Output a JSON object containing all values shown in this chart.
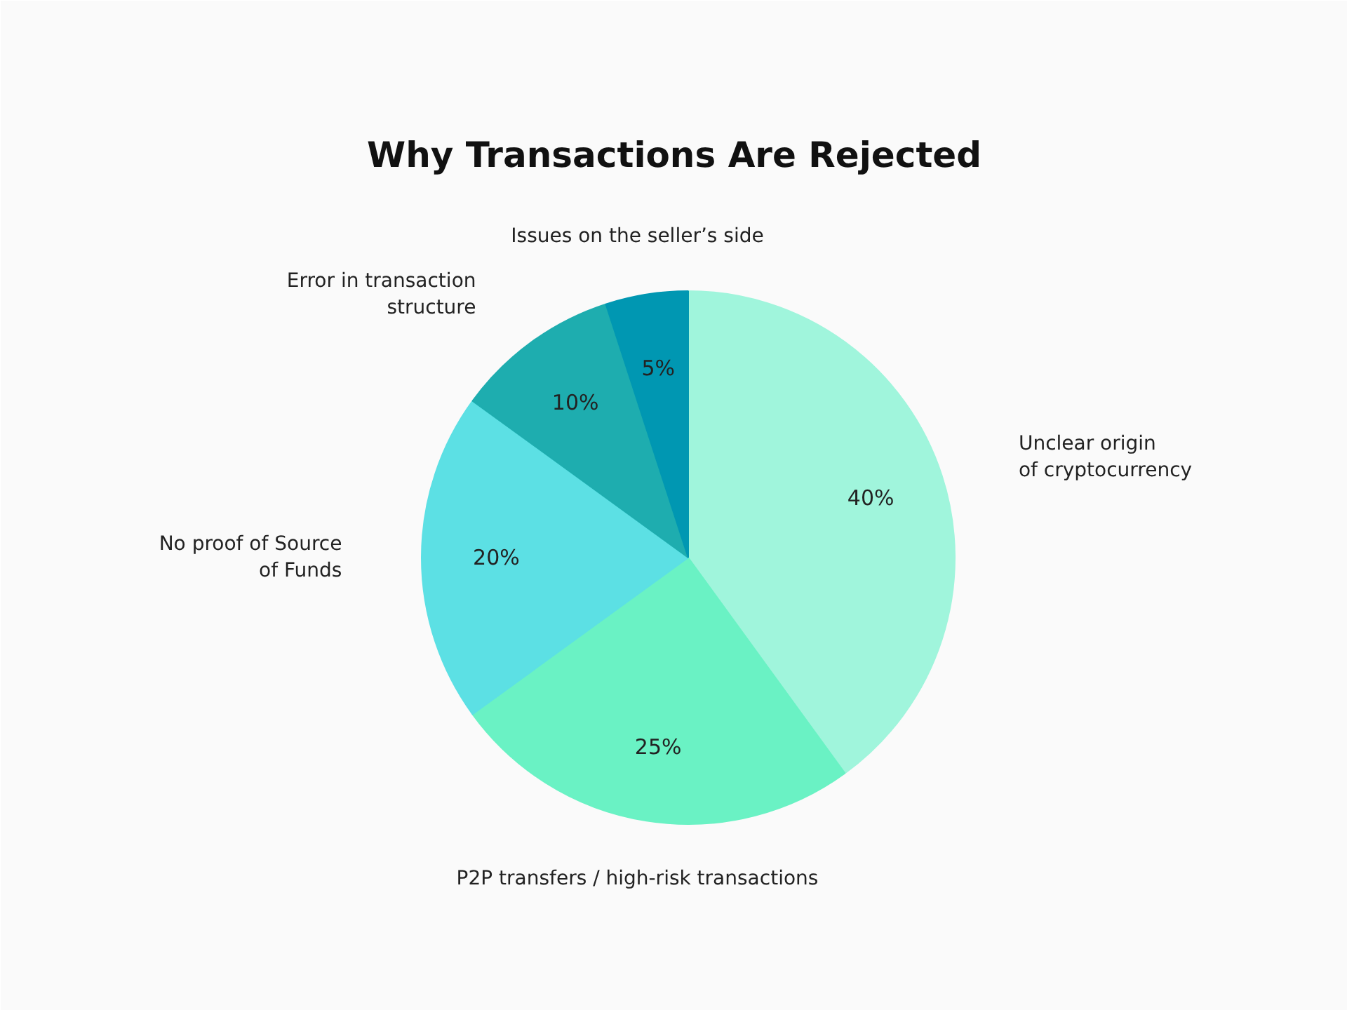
{
  "chart_data": {
    "type": "pie",
    "title": "Why Transactions Are Rejected",
    "categories": [
      "Unclear origin\nof cryptocurrency",
      "P2P transfers / high-risk transactions",
      "No proof of Source\nof Funds",
      "Error in transaction\nstructure",
      "Issues on the seller’s side"
    ],
    "values": [
      40,
      25,
      20,
      10,
      5
    ],
    "colors": [
      "#a0f5dc",
      "#6af2c4",
      "#5ce0e4",
      "#1eadaf",
      "#0097b2"
    ],
    "value_labels": [
      "40%",
      "25%",
      "20%",
      "10%",
      "5%"
    ]
  }
}
